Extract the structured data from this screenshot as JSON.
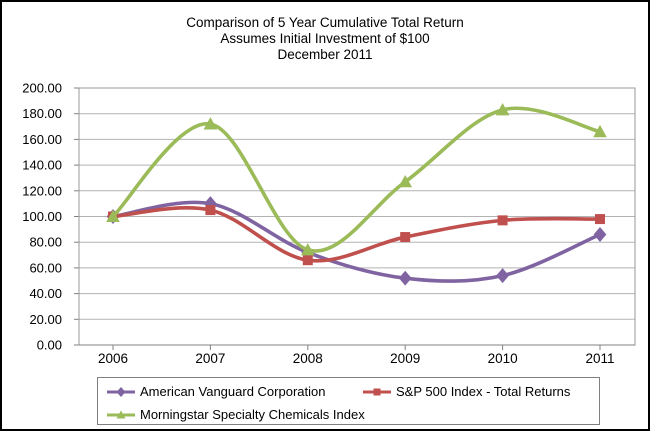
{
  "title": {
    "line1": "Comparison of 5 Year Cumulative Total Return",
    "line2": "Assumes Initial Investment of $100",
    "line3": "December 2011"
  },
  "chart_data": {
    "type": "line",
    "smooth": true,
    "title": "Comparison of 5 Year Cumulative Total Return — Assumes Initial Investment of $100 — December 2011",
    "x_labels": [
      "2006",
      "2007",
      "2008",
      "2009",
      "2010",
      "2011"
    ],
    "series": [
      {
        "name": "American Vanguard Corporation",
        "color": "#8064A2",
        "marker": "diamond",
        "values": [
          100,
          110,
          72,
          52,
          54,
          86
        ]
      },
      {
        "name": "S&P 500 Index - Total Returns",
        "color": "#C0504D",
        "marker": "square",
        "values": [
          100,
          105,
          66,
          84,
          97,
          98
        ]
      },
      {
        "name": "Morningstar Specialty Chemicals Index",
        "color": "#9BBB59",
        "marker": "triangle",
        "values": [
          100,
          172,
          74,
          127,
          183,
          166
        ]
      }
    ],
    "ylim": [
      0,
      200
    ],
    "ytick_step": 20,
    "ytick_decimals": 2,
    "grid": true,
    "legend_position": "bottom",
    "colors": {
      "gridline": "#b3b3b3",
      "plot_border": "#999999",
      "axis": "#808080"
    }
  }
}
